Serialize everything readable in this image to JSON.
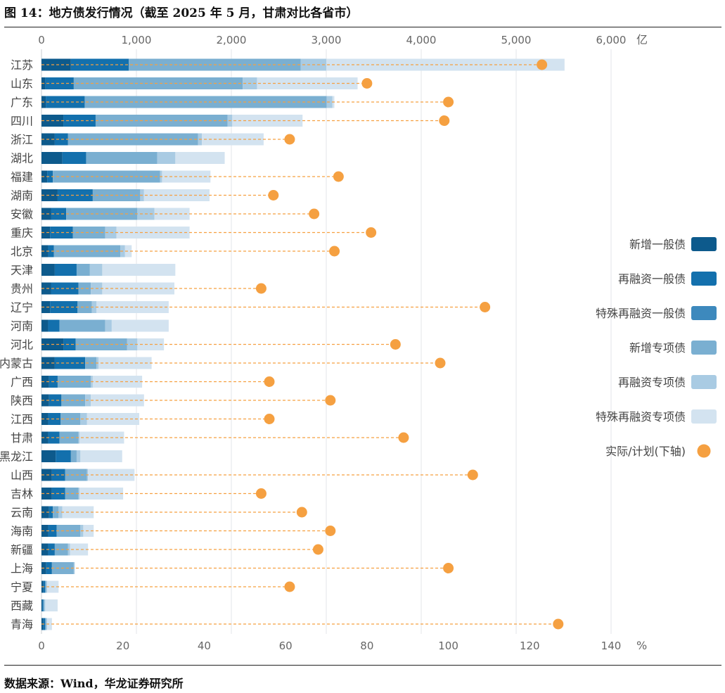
{
  "figure": {
    "title": "图 14：地方债发行情况（截至 2025 年 5 月，甘肃对比各省市）",
    "source": "数据来源：Wind，华龙证券研究所"
  },
  "chart_data": {
    "type": "bar",
    "orientation": "horizontal",
    "stacked": true,
    "categories": [
      "江苏",
      "山东",
      "广东",
      "四川",
      "浙江",
      "湖北",
      "福建",
      "湖南",
      "安徽",
      "重庆",
      "北京",
      "天津",
      "贵州",
      "辽宁",
      "河南",
      "河北",
      "内蒙古",
      "广西",
      "陕西",
      "江西",
      "甘肃",
      "黑龙江",
      "山西",
      "吉林",
      "云南",
      "海南",
      "新疆",
      "上海",
      "宁夏",
      "西藏",
      "青海"
    ],
    "top_axis": {
      "unit": "亿",
      "min": 0,
      "max": 6000,
      "ticks": [
        0,
        1000,
        2000,
        3000,
        4000,
        5000,
        6000
      ],
      "tick_labels": [
        "0",
        "1,000",
        "2,000",
        "3,000",
        "4,000",
        "5,000",
        "6,000"
      ]
    },
    "bottom_axis": {
      "unit": "%",
      "min": 0,
      "max": 140,
      "ticks": [
        0,
        20,
        40,
        60,
        80,
        100,
        120,
        140
      ],
      "tick_labels": [
        "0",
        "20",
        "40",
        "60",
        "80",
        "100",
        "120",
        "140"
      ]
    },
    "legend": {
      "placement": "right"
    },
    "series": [
      {
        "name": "新增一般债",
        "color": "#0d5a8c",
        "axis": "top",
        "values": [
          310,
          40,
          45,
          230,
          140,
          220,
          60,
          170,
          100,
          90,
          70,
          140,
          100,
          90,
          70,
          230,
          140,
          80,
          80,
          70,
          70,
          150,
          110,
          110,
          80,
          70,
          70,
          50,
          20,
          10,
          20
        ]
      },
      {
        "name": "再融资一般债",
        "color": "#1370ad",
        "axis": "top",
        "values": [
          610,
          300,
          410,
          340,
          140,
          250,
          60,
          370,
          160,
          240,
          60,
          230,
          290,
          290,
          120,
          130,
          320,
          90,
          130,
          130,
          120,
          160,
          140,
          140,
          40,
          90,
          70,
          60,
          20,
          10,
          20
        ]
      },
      {
        "name": "特殊再融资一般债",
        "color": "#3d89bd",
        "axis": "top",
        "values": [
          0,
          0,
          0,
          0,
          0,
          0,
          0,
          0,
          0,
          0,
          0,
          0,
          0,
          0,
          0,
          0,
          0,
          0,
          0,
          0,
          0,
          0,
          0,
          0,
          0,
          0,
          0,
          0,
          0,
          0,
          0
        ]
      },
      {
        "name": "新增专项债",
        "color": "#7aafd1",
        "axis": "top",
        "values": [
          1810,
          1780,
          2550,
          1390,
          1370,
          750,
          1130,
          500,
          750,
          340,
          700,
          140,
          130,
          150,
          480,
          540,
          120,
          350,
          250,
          210,
          200,
          60,
          230,
          140,
          60,
          250,
          140,
          230,
          10,
          10,
          10
        ]
      },
      {
        "name": "再融资专项债",
        "color": "#a9cbe3",
        "axis": "top",
        "values": [
          270,
          150,
          60,
          50,
          40,
          190,
          20,
          40,
          180,
          120,
          50,
          130,
          120,
          50,
          70,
          110,
          20,
          20,
          60,
          70,
          10,
          40,
          10,
          10,
          40,
          30,
          20,
          10,
          10,
          10,
          10
        ]
      },
      {
        "name": "特殊再融资专项债",
        "color": "#d3e3f0",
        "axis": "top",
        "values": [
          2510,
          1060,
          20,
          740,
          650,
          520,
          510,
          690,
          370,
          770,
          70,
          770,
          760,
          760,
          600,
          280,
          560,
          520,
          560,
          550,
          470,
          440,
          490,
          460,
          330,
          110,
          190,
          0,
          120,
          130,
          50
        ]
      },
      {
        "name": "实际/计划(下轴)",
        "color": "#f5a041",
        "axis": "bottom",
        "marker": "circle",
        "line_style": "dashed",
        "values": [
          123,
          80,
          100,
          99,
          61,
          null,
          73,
          57,
          67,
          81,
          72,
          null,
          54,
          109,
          null,
          87,
          98,
          56,
          71,
          56,
          89,
          null,
          106,
          54,
          64,
          71,
          68,
          100,
          61,
          null,
          127
        ]
      }
    ]
  }
}
